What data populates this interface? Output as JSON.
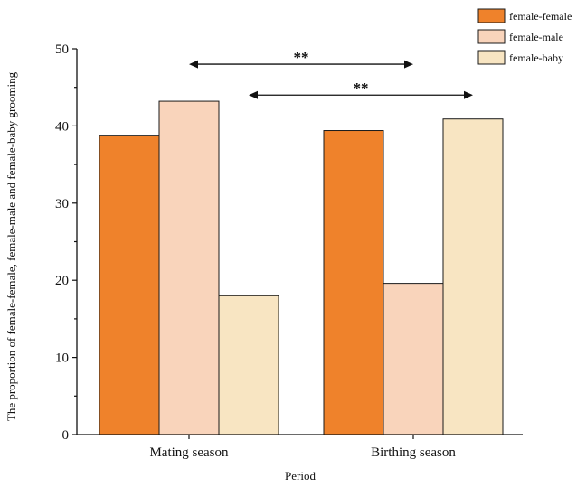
{
  "chart_data": {
    "type": "bar",
    "title": "",
    "xlabel": "Period",
    "ylabel": "The proportion of female-female, female-male and female-baby grooming",
    "categories": [
      "Mating season",
      "Birthing season"
    ],
    "series": [
      {
        "name": "female-female",
        "color": "#EF822B",
        "values": [
          38.8,
          39.4
        ]
      },
      {
        "name": "female-male",
        "color": "#F9D4BB",
        "values": [
          43.2,
          19.6
        ]
      },
      {
        "name": "female-baby",
        "color": "#F8E5C2",
        "values": [
          18.0,
          40.9
        ]
      }
    ],
    "ylim": [
      0,
      50
    ],
    "yticks": [
      "0",
      "10",
      "20",
      "30",
      "40",
      "50"
    ],
    "grid": false,
    "legend_position": "top-right",
    "annotations": [
      {
        "label": "**",
        "from_series": "female-male",
        "from_category": 0,
        "to_series": "female-male",
        "to_category": 1,
        "level": 48
      },
      {
        "label": "**",
        "from_series": "female-baby",
        "from_category": 0,
        "to_series": "female-baby",
        "to_category": 1,
        "level": 44
      }
    ]
  }
}
